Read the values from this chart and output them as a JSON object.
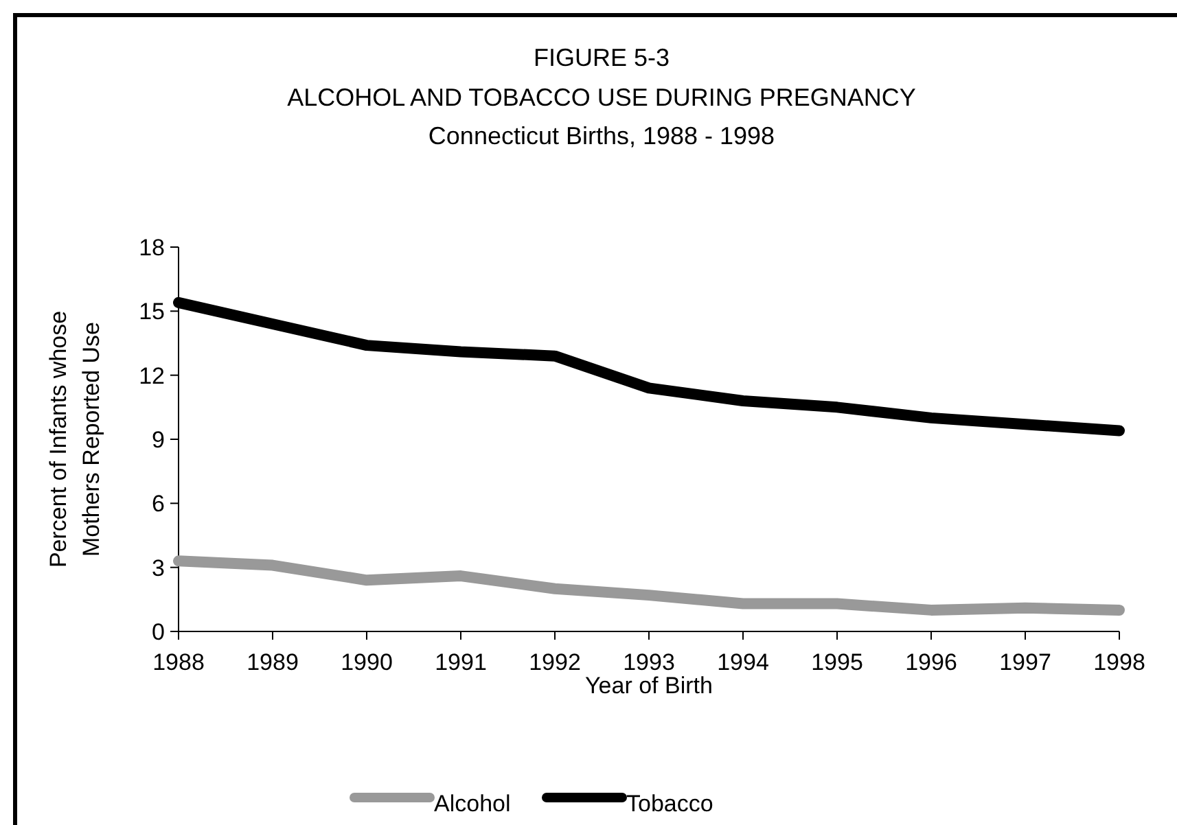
{
  "chart_data": {
    "type": "line",
    "title": "FIGURE 5-3",
    "subtitle": "ALCOHOL AND TOBACCO USE DURING PREGNANCY\nConnecticut Births, 1988 - 1998",
    "xlabel": "Year of Birth",
    "ylabel": "Percent of Infants whose\nMothers Reported Use",
    "categories": [
      "1988",
      "1989",
      "1990",
      "1991",
      "1992",
      "1993",
      "1994",
      "1995",
      "1996",
      "1997",
      "1998"
    ],
    "series": [
      {
        "name": "Alcohol",
        "color": "#999999",
        "values": [
          3.3,
          3.1,
          2.4,
          2.6,
          2.0,
          1.7,
          1.3,
          1.3,
          1.0,
          1.1,
          1.0
        ]
      },
      {
        "name": "Tobacco",
        "color": "#000000",
        "values": [
          15.4,
          14.4,
          13.4,
          13.1,
          12.9,
          11.4,
          10.8,
          10.5,
          10.0,
          9.7,
          9.4
        ]
      }
    ],
    "ylim": [
      0,
      18
    ],
    "yticks": [
      0,
      3,
      6,
      9,
      12,
      15,
      18
    ],
    "grid": false,
    "legend": "bottom",
    "marker": "none",
    "line_style": "solid"
  }
}
